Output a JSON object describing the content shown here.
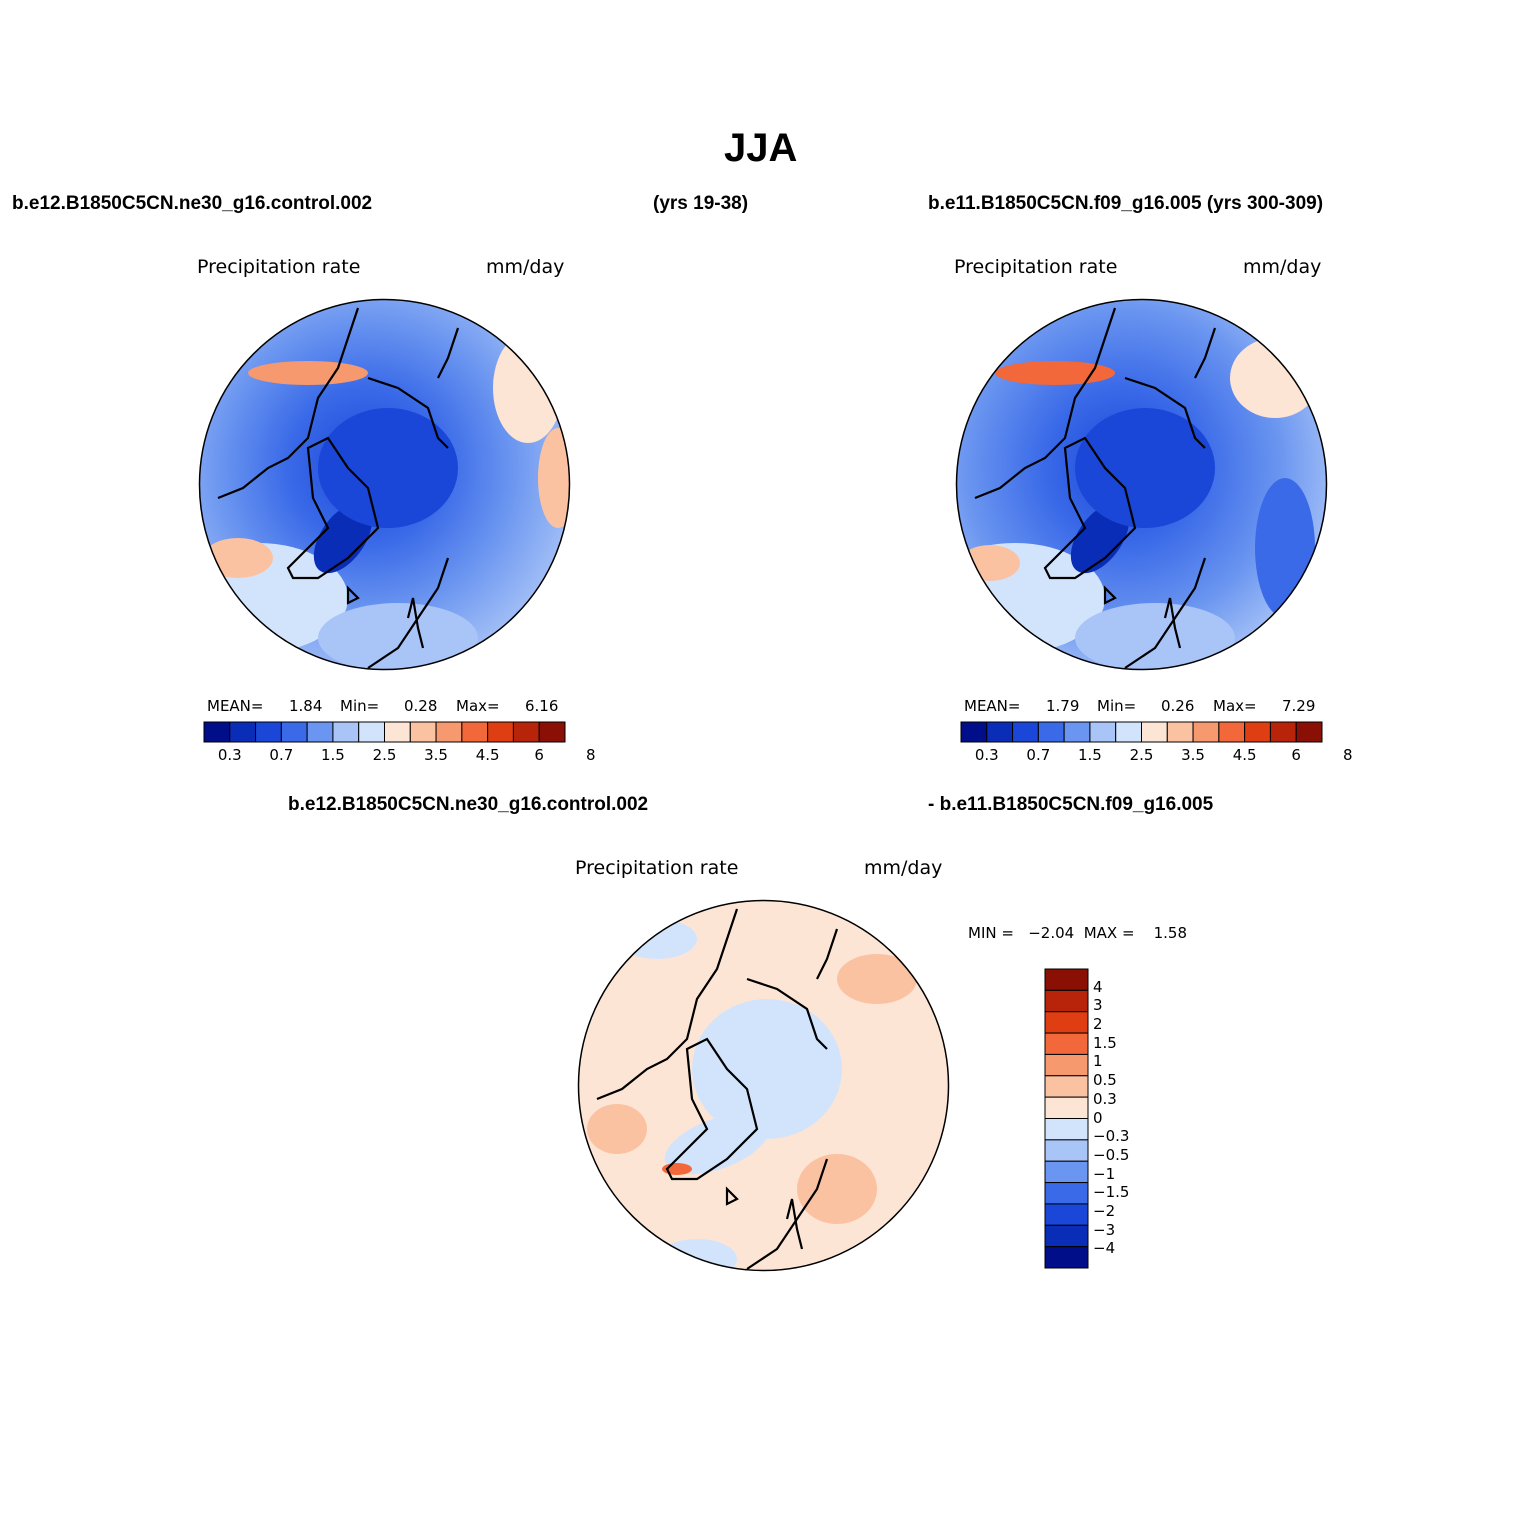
{
  "title": "JJA",
  "top_left_case": "b.e12.B1850C5CN.ne30_g16.control.002",
  "top_left_years": "(yrs 19-38)",
  "top_right_case": "b.e11.B1850C5CN.f09_g16.005 (yrs 300-309)",
  "diff_case_a": "b.e12.B1850C5CN.ne30_g16.control.002",
  "diff_case_b": "- b.e11.B1850C5CN.f09_g16.005",
  "panels": [
    {
      "variable": "Precipitation rate",
      "units": "mm/day",
      "stats": {
        "mean_label": "MEAN=",
        "mean": "1.84",
        "min_label": "Min=",
        "min": "0.28",
        "max_label": "Max=",
        "max": "6.16"
      }
    },
    {
      "variable": "Precipitation rate",
      "units": "mm/day",
      "stats": {
        "mean_label": "MEAN=",
        "mean": "1.79",
        "min_label": "Min=",
        "min": "0.26",
        "max_label": "Max=",
        "max": "7.29"
      }
    }
  ],
  "diff_panel": {
    "variable": "Precipitation rate",
    "units": "mm/day",
    "minmax": "MIN =   −2.04  MAX =    1.58"
  },
  "abs_colorbar": {
    "colors": [
      "#000e8a",
      "#0a2db8",
      "#1a47d8",
      "#3a6ae8",
      "#6a95f0",
      "#a9c4f7",
      "#d2e4fc",
      "#fde5d5",
      "#fbc2a2",
      "#f7996e",
      "#f2683a",
      "#df3d12",
      "#b8240a",
      "#8a0f05"
    ],
    "tick_labels": [
      "0.3",
      "0.7",
      "1.5",
      "2.5",
      "3.5",
      "4.5",
      "6",
      "8"
    ]
  },
  "diff_colorbar": {
    "colors": [
      "#000e8a",
      "#0a2db8",
      "#1a47d8",
      "#3a6ae8",
      "#6a95f0",
      "#a9c4f7",
      "#d2e4fc",
      "#fde5d5",
      "#fbc2a2",
      "#f7996e",
      "#f2683a",
      "#df3d12",
      "#b8240a",
      "#8a0f05"
    ],
    "tick_labels": [
      "−4",
      "−3",
      "−2",
      "−1.5",
      "−1",
      "−0.5",
      "−0.3",
      "0",
      "0.3",
      "0.5",
      "1",
      "1.5",
      "2",
      "3",
      "4"
    ]
  }
}
